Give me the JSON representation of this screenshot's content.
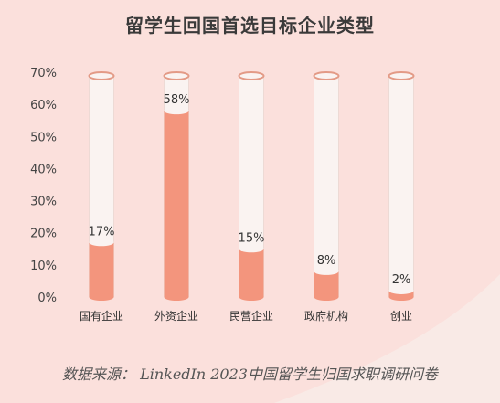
{
  "chart_data": {
    "type": "bar",
    "title": "留学生回国首选目标企业类型",
    "categories": [
      "国有企业",
      "外资企业",
      "民营企业",
      "政府机构",
      "创业"
    ],
    "values": [
      17,
      58,
      15,
      8,
      2
    ],
    "value_labels": [
      "17%",
      "58%",
      "15%",
      "8%",
      "2%"
    ],
    "ylim": [
      0,
      70
    ],
    "yticks": [
      0,
      10,
      20,
      30,
      40,
      50,
      60,
      70
    ],
    "ytick_labels": [
      "0%",
      "10%",
      "20%",
      "30%",
      "40%",
      "50%",
      "60%",
      "70%"
    ],
    "grid": false,
    "source": "数据来源： LinkedIn 2023中国留学生归国求职调研问卷"
  },
  "colors": {
    "bar_fill": "#f3957d",
    "bar_track": "#faf3f1",
    "bar_track_edge": "#e39a86",
    "background": "#fbe0dc"
  }
}
